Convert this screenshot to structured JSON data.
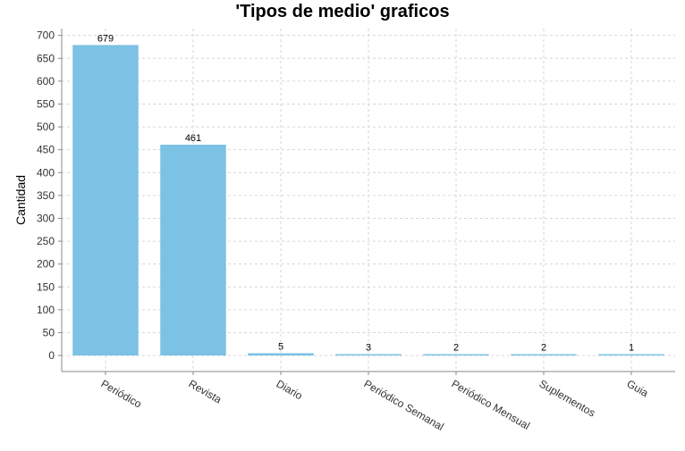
{
  "chart_data": {
    "type": "bar",
    "title": "'Tipos de medio' graficos",
    "xlabel": "",
    "ylabel": "Cantidad",
    "categories": [
      "Periódico",
      "Revista",
      "Diario",
      "Periódico Semanal",
      "Periódico Mensual",
      "Suplementos",
      "Guia"
    ],
    "values": [
      679,
      461,
      5,
      3,
      2,
      2,
      1
    ],
    "ylim": [
      -35,
      715
    ],
    "yticks": [
      0,
      50,
      100,
      150,
      200,
      250,
      300,
      350,
      400,
      450,
      500,
      550,
      600,
      650,
      700
    ],
    "grid": true,
    "legend": "none",
    "bar_color": "#7bc2e4"
  }
}
